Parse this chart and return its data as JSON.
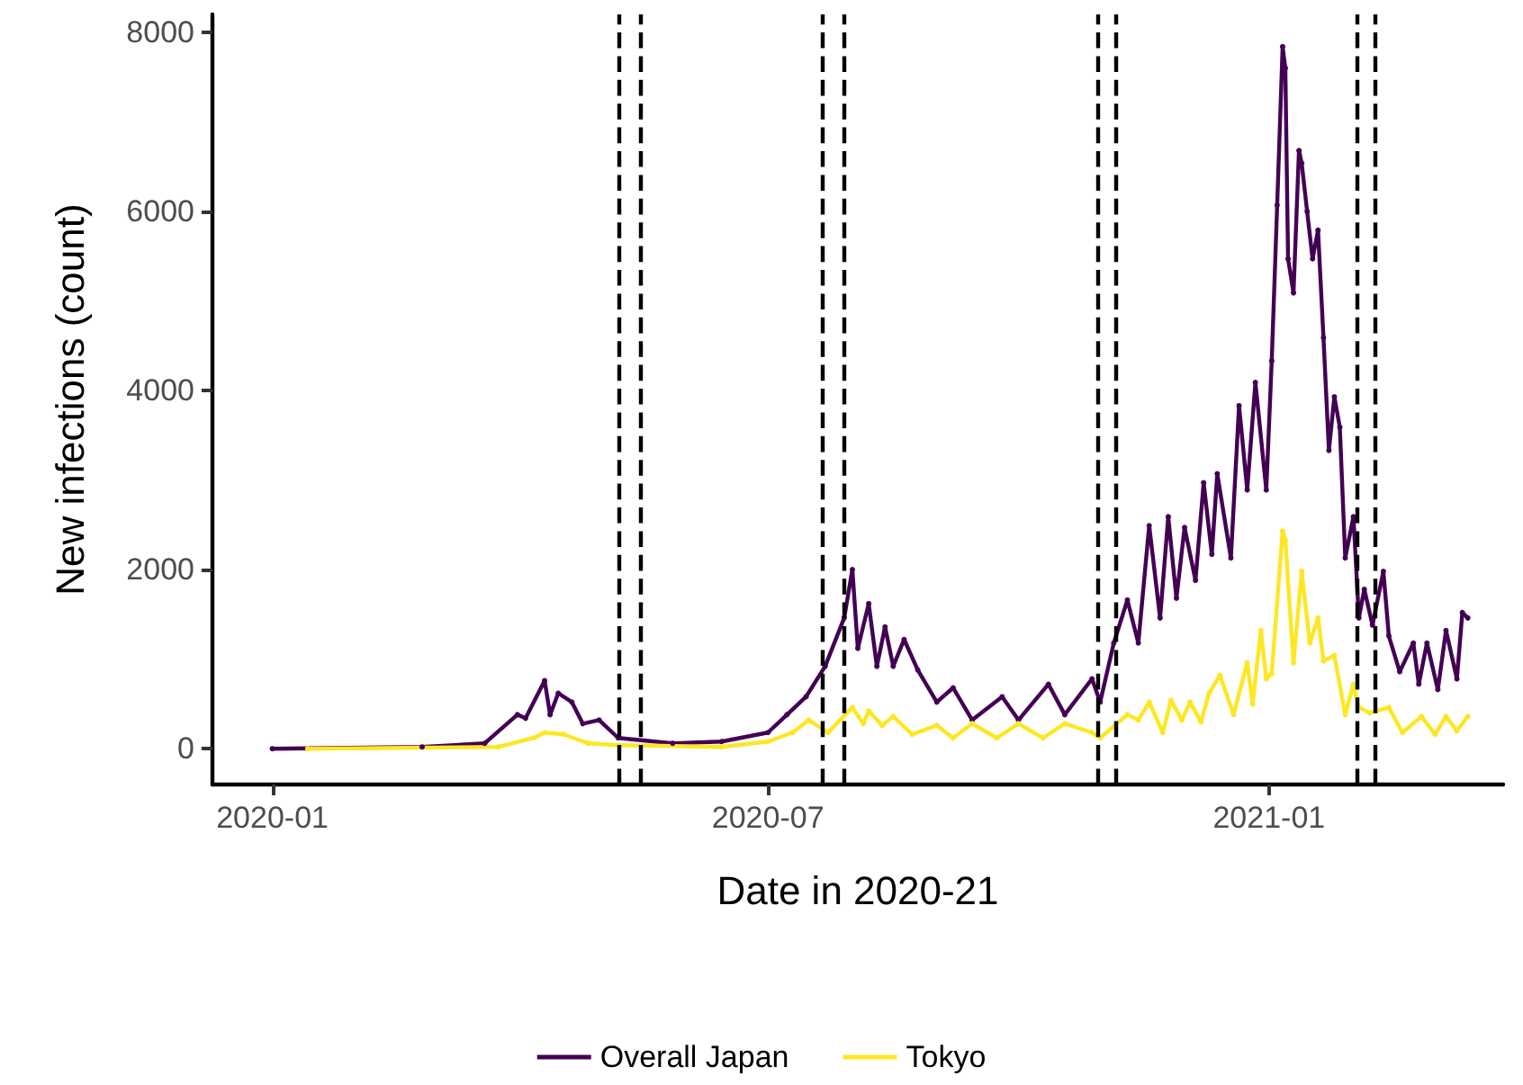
{
  "chart_data": {
    "type": "line",
    "xlabel": "Date in 2020-21",
    "ylabel": "New infections (count)",
    "xlim": [
      "2019-12-10",
      "2021-03-28"
    ],
    "xticks": [
      "2020-01",
      "2020-07",
      "2021-01"
    ],
    "ylim": [
      -400,
      8200
    ],
    "yticks": [
      0,
      2000,
      4000,
      6000,
      8000
    ],
    "grid": false,
    "legend": "bottom",
    "marker": "circle",
    "line_style": "solid",
    "ref_lines": [
      {
        "axis": "x",
        "value": "2020-05-07",
        "color": "#000000",
        "line_style": "dashed"
      },
      {
        "axis": "x",
        "value": "2020-05-15",
        "color": "#000000",
        "line_style": "dashed"
      },
      {
        "axis": "x",
        "value": "2020-07-21",
        "color": "#000000",
        "line_style": "dashed"
      },
      {
        "axis": "x",
        "value": "2020-07-29",
        "color": "#000000",
        "line_style": "dashed"
      },
      {
        "axis": "x",
        "value": "2020-10-30",
        "color": "#000000",
        "line_style": "dashed"
      },
      {
        "axis": "x",
        "value": "2020-11-06",
        "color": "#000000",
        "line_style": "dashed"
      },
      {
        "axis": "x",
        "value": "2021-02-02",
        "color": "#000000",
        "line_style": "dashed"
      },
      {
        "axis": "x",
        "value": "2021-02-09",
        "color": "#000000",
        "line_style": "dashed"
      }
    ],
    "series": [
      {
        "name": "Overall Japan",
        "color": "#440154",
        "x": [
          "2020-01-01",
          "2020-02-25",
          "2020-03-19",
          "2020-03-31",
          "2020-04-03",
          "2020-04-10",
          "2020-04-12",
          "2020-04-15",
          "2020-04-20",
          "2020-04-24",
          "2020-04-30",
          "2020-05-07",
          "2020-05-27",
          "2020-06-14",
          "2020-07-01",
          "2020-07-08",
          "2020-07-15",
          "2020-07-22",
          "2020-07-29",
          "2020-08-01",
          "2020-08-03",
          "2020-08-07",
          "2020-08-10",
          "2020-08-13",
          "2020-08-16",
          "2020-08-20",
          "2020-08-25",
          "2020-09-01",
          "2020-09-07",
          "2020-09-14",
          "2020-09-25",
          "2020-10-01",
          "2020-10-12",
          "2020-10-18",
          "2020-10-28",
          "2020-10-31",
          "2020-11-05",
          "2020-11-10",
          "2020-11-14",
          "2020-11-18",
          "2020-11-22",
          "2020-11-25",
          "2020-11-28",
          "2020-12-01",
          "2020-12-05",
          "2020-12-08",
          "2020-12-11",
          "2020-12-13",
          "2020-12-18",
          "2020-12-21",
          "2020-12-24",
          "2020-12-27",
          "2020-12-31",
          "2021-01-02",
          "2021-01-04",
          "2021-01-06",
          "2021-01-07",
          "2021-01-08",
          "2021-01-10",
          "2021-01-12",
          "2021-01-13",
          "2021-01-15",
          "2021-01-17",
          "2021-01-19",
          "2021-01-21",
          "2021-01-23",
          "2021-01-25",
          "2021-01-27",
          "2021-01-29",
          "2021-02-01",
          "2021-02-03",
          "2021-02-05",
          "2021-02-08",
          "2021-02-12",
          "2021-02-14",
          "2021-02-18",
          "2021-02-23",
          "2021-02-25",
          "2021-02-28",
          "2021-03-04",
          "2021-03-07",
          "2021-03-11",
          "2021-03-13",
          "2021-03-15"
        ],
        "values": [
          0,
          20,
          60,
          380,
          340,
          760,
          380,
          620,
          520,
          280,
          320,
          120,
          60,
          80,
          180,
          380,
          580,
          920,
          1460,
          2000,
          1120,
          1620,
          920,
          1360,
          920,
          1220,
          880,
          520,
          680,
          320,
          580,
          320,
          720,
          380,
          780,
          520,
          1180,
          1660,
          1180,
          2490,
          1460,
          2590,
          1680,
          2470,
          1880,
          2970,
          2170,
          3070,
          2130,
          3830,
          2890,
          4090,
          2890,
          4330,
          6070,
          7840,
          7600,
          5470,
          5090,
          6680,
          6540,
          6000,
          5470,
          5790,
          4590,
          3330,
          3930,
          3590,
          2130,
          2590,
          1460,
          1780,
          1380,
          1980,
          1260,
          860,
          1180,
          720,
          1180,
          660,
          1320,
          780,
          1520,
          1460
        ]
      },
      {
        "name": "Tokyo",
        "color": "#fde725",
        "x": [
          "2020-01-14",
          "2020-03-24",
          "2020-04-06",
          "2020-04-10",
          "2020-04-17",
          "2020-04-26",
          "2020-05-07",
          "2020-06-14",
          "2020-07-01",
          "2020-07-10",
          "2020-07-16",
          "2020-07-23",
          "2020-08-01",
          "2020-08-05",
          "2020-08-07",
          "2020-08-12",
          "2020-08-16",
          "2020-08-23",
          "2020-09-01",
          "2020-09-07",
          "2020-09-14",
          "2020-09-23",
          "2020-10-01",
          "2020-10-10",
          "2020-10-18",
          "2020-10-28",
          "2020-10-31",
          "2020-11-10",
          "2020-11-14",
          "2020-11-18",
          "2020-11-23",
          "2020-11-26",
          "2020-11-30",
          "2020-12-03",
          "2020-12-07",
          "2020-12-10",
          "2020-12-14",
          "2020-12-19",
          "2020-12-24",
          "2020-12-26",
          "2020-12-29",
          "2020-12-31",
          "2021-01-02",
          "2021-01-06",
          "2021-01-07",
          "2021-01-10",
          "2021-01-13",
          "2021-01-16",
          "2021-01-19",
          "2021-01-21",
          "2021-01-25",
          "2021-01-29",
          "2021-02-01",
          "2021-02-03",
          "2021-02-07",
          "2021-02-14",
          "2021-02-19",
          "2021-02-26",
          "2021-03-03",
          "2021-03-07",
          "2021-03-11",
          "2021-03-15"
        ],
        "values": [
          0,
          20,
          120,
          180,
          160,
          60,
          40,
          20,
          80,
          180,
          320,
          180,
          460,
          280,
          420,
          260,
          360,
          160,
          260,
          120,
          280,
          120,
          280,
          120,
          280,
          180,
          120,
          380,
          320,
          520,
          180,
          540,
          320,
          520,
          300,
          620,
          820,
          380,
          960,
          500,
          1320,
          780,
          840,
          2430,
          2330,
          960,
          1980,
          1180,
          1460,
          980,
          1040,
          380,
          720,
          460,
          400,
          460,
          180,
          360,
          160,
          360,
          200,
          360
        ]
      }
    ]
  }
}
